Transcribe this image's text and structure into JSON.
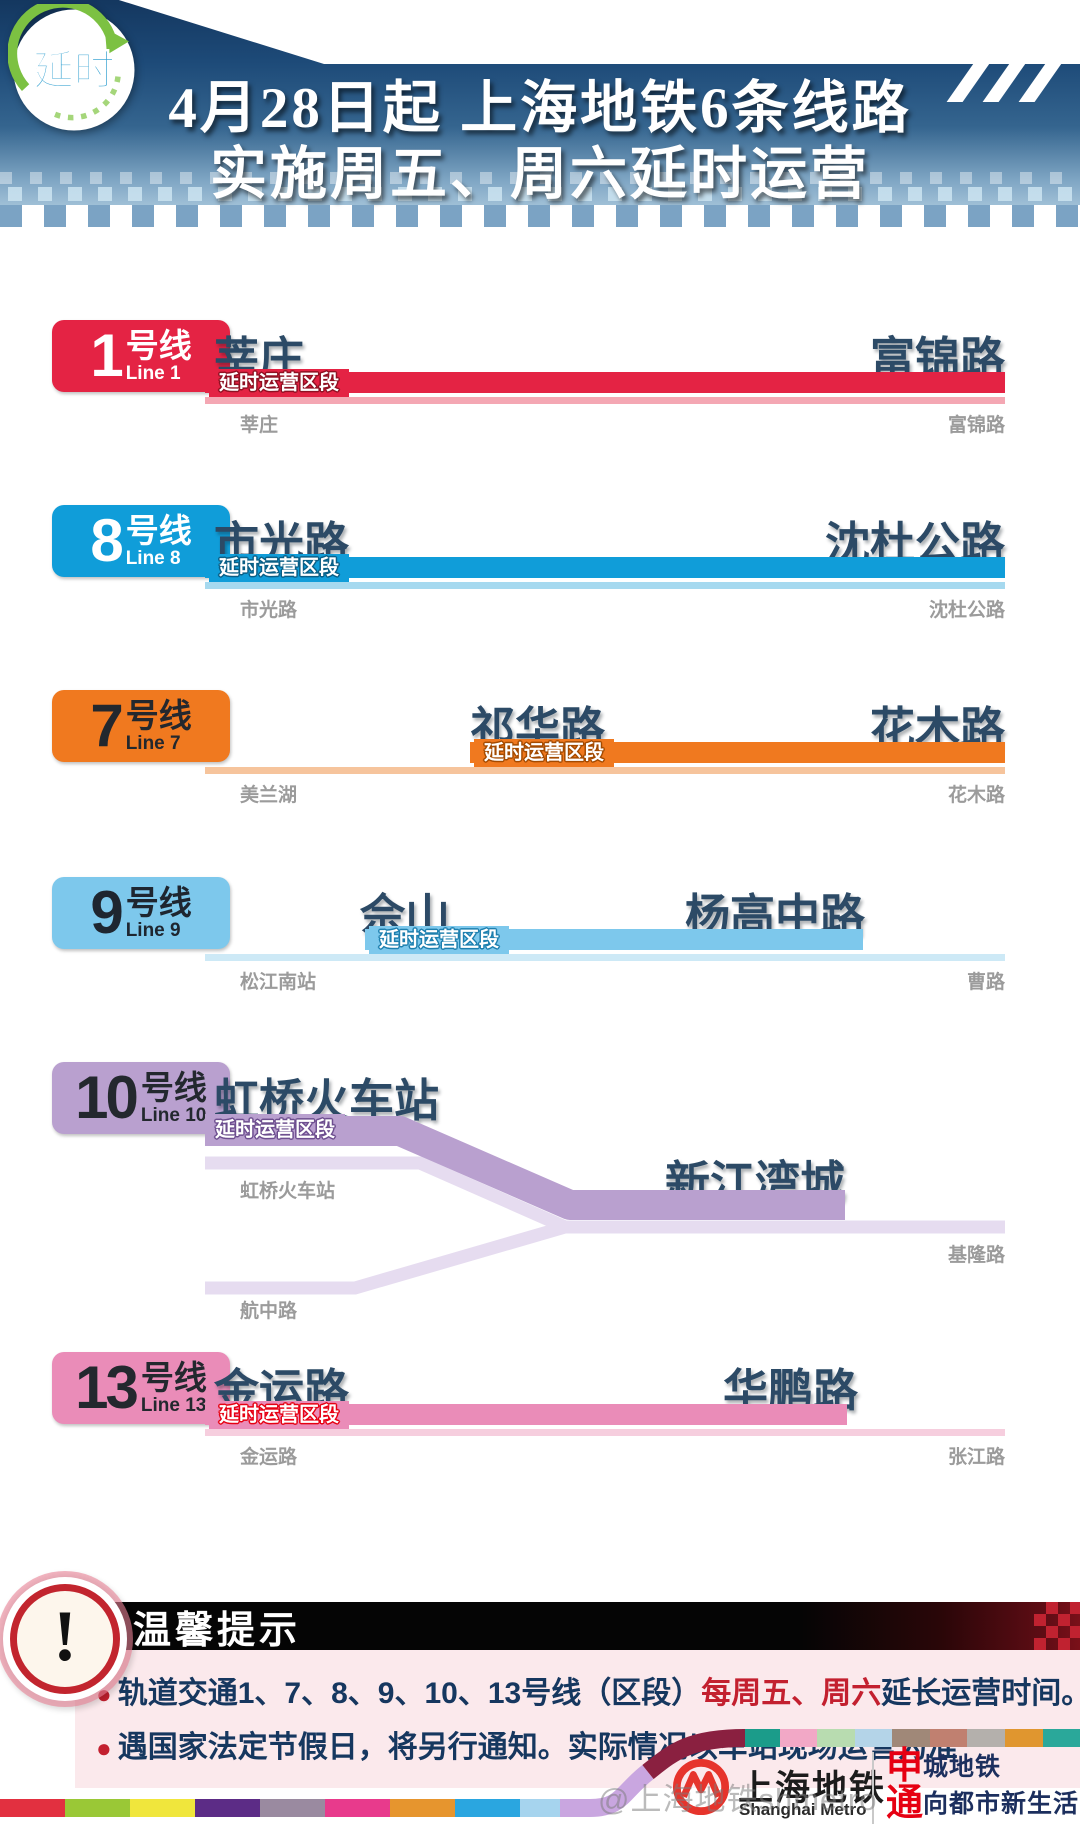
{
  "header": {
    "badge_text": "延时",
    "title_line1": "4月28日起 上海地铁6条线路",
    "title_line2": "实施周五、周六延时运营"
  },
  "lines": [
    {
      "number": "1",
      "suffix": "号线",
      "en": "Line 1",
      "color": "#e42344",
      "light_color": "#f4a7b3",
      "text_color": "#ffffff",
      "tag": "延时运营区段",
      "tag_outline": "#8f1022",
      "station_left": "莘庄",
      "station_right": "富锦路",
      "terminus_left": "莘庄",
      "terminus_right": "富锦路"
    },
    {
      "number": "8",
      "suffix": "号线",
      "en": "Line 8",
      "color": "#109dd9",
      "light_color": "#a6d9ef",
      "text_color": "#ffffff",
      "tag": "延时运营区段",
      "tag_outline": "#0a5e85",
      "station_left": "市光路",
      "station_right": "沈杜公路",
      "terminus_left": "市光路",
      "terminus_right": "沈杜公路"
    },
    {
      "number": "7",
      "suffix": "号线",
      "en": "Line 7",
      "color": "#f0791f",
      "light_color": "#f6c49c",
      "text_color": "#23282e",
      "tag": "延时运营区段",
      "tag_outline": "#a34a00",
      "station_left": "祁华路",
      "station_right": "花木路",
      "terminus_left": "美兰湖",
      "terminus_right": "花木路"
    },
    {
      "number": "9",
      "suffix": "号线",
      "en": "Line 9",
      "color": "#7dc8ec",
      "light_color": "#cde9f6",
      "text_color": "#1e2630",
      "tag": "延时运营区段",
      "tag_outline": "#1d7fae",
      "station_left": "佘山",
      "station_right": "杨高中路",
      "terminus_left": "松江南站",
      "terminus_right": "曹路"
    },
    {
      "number": "10",
      "suffix": "号线",
      "en": "Line 10",
      "color": "#b9a0cf",
      "light_color": "#e6dcf0",
      "text_color": "#23282e",
      "tag": "延时运营区段",
      "tag_outline": "#6d4e8f",
      "station_left": "虹桥火车站",
      "station_right": "新江湾城",
      "terminus_left": "虹桥火车站",
      "terminus_right": "基隆路",
      "branch_terminus": "航中路"
    },
    {
      "number": "13",
      "suffix": "号线",
      "en": "Line 13",
      "color": "#ea8cb8",
      "light_color": "#f6cede",
      "text_color": "#23282e",
      "tag": "延时运营区段",
      "tag_outline": "#e60012",
      "station_left": "金运路",
      "station_right": "华鹏路",
      "terminus_left": "金运路",
      "terminus_right": "张江路"
    }
  ],
  "tips": {
    "title": "温馨提示",
    "icon_glyph": "!",
    "bullet1_pre": "轨道交通1、7、8、9、10、13号线（区段）",
    "bullet1_highlight": "每周五、周六",
    "bullet1_post": "延长运营时间。",
    "bullet2": "遇国家法定节假日，将另行通知。实际情况以车站现场运营为准",
    "highlight_color": "#c3202f"
  },
  "footer": {
    "logo_cn": "上海地铁",
    "logo_en": "Shanghai Metro",
    "slogan_char1": "申",
    "slogan_rest1": "城地铁",
    "slogan_char2": "通",
    "slogan_rest2": "向都市新生活",
    "watermark": "@上海地铁shmetro",
    "ribbon_bottom": [
      "#e23040",
      "#9ac836",
      "#f0e63c",
      "#5c2c86",
      "#9a8aa0",
      "#e83a8c",
      "#e6952e",
      "#2aa6e0",
      "#a6d4ee"
    ],
    "ribbon_top": [
      "#1b9c8a",
      "#f2a8c6",
      "#b8dcb0",
      "#b4d4e8",
      "#a08878",
      "#c08070",
      "#b4b0ac",
      "#e0962f",
      "#2aa89a"
    ],
    "curve_colors": [
      "#c9a6e0",
      "#8a2040"
    ]
  }
}
